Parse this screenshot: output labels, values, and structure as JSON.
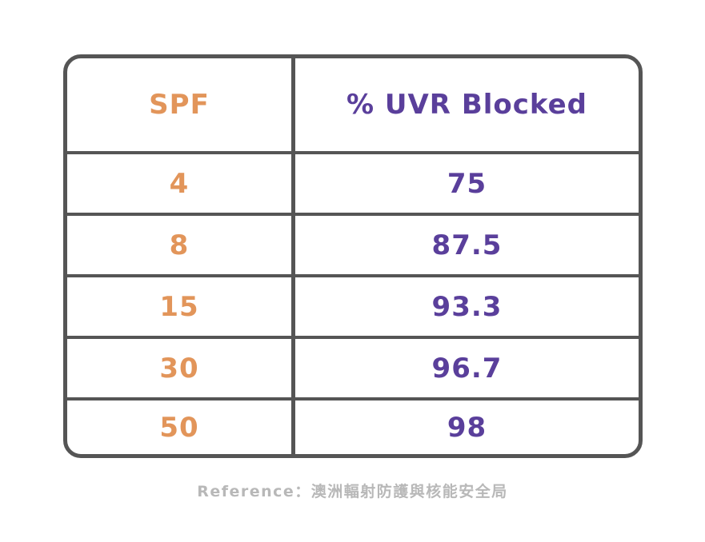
{
  "colors": {
    "spf": "#e2955a",
    "uvr": "#5a3f9b",
    "border": "#555555",
    "reference": "#b8b8b8"
  },
  "table": {
    "headers": {
      "spf": "SPF",
      "uvr": "% UVR Blocked"
    },
    "rows": [
      {
        "spf": "4",
        "uvr": "75"
      },
      {
        "spf": "8",
        "uvr": "87.5"
      },
      {
        "spf": "15",
        "uvr": "93.3"
      },
      {
        "spf": "30",
        "uvr": "96.7"
      },
      {
        "spf": "50",
        "uvr": "98"
      }
    ]
  },
  "reference": "Reference：澳洲輻射防護與核能安全局"
}
